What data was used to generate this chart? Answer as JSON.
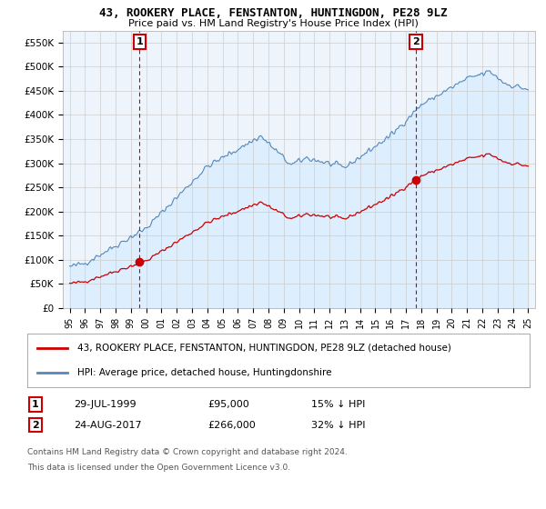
{
  "title": "43, ROOKERY PLACE, FENSTANTON, HUNTINGDON, PE28 9LZ",
  "subtitle": "Price paid vs. HM Land Registry's House Price Index (HPI)",
  "legend_line1": "43, ROOKERY PLACE, FENSTANTON, HUNTINGDON, PE28 9LZ (detached house)",
  "legend_line2": "HPI: Average price, detached house, Huntingdonshire",
  "footnote1": "Contains HM Land Registry data © Crown copyright and database right 2024.",
  "footnote2": "This data is licensed under the Open Government Licence v3.0.",
  "marker1_date": "29-JUL-1999",
  "marker1_price": "£95,000",
  "marker1_hpi": "15% ↓ HPI",
  "marker2_date": "24-AUG-2017",
  "marker2_price": "£266,000",
  "marker2_hpi": "32% ↓ HPI",
  "hpi_color": "#5588bb",
  "hpi_fill_color": "#ddeeff",
  "price_color": "#cc0000",
  "marker_color": "#cc0000",
  "grid_color": "#cccccc",
  "bg_color": "#ffffff",
  "plot_bg_color": "#eef4fb",
  "ylim": [
    0,
    575000
  ],
  "yticks": [
    0,
    50000,
    100000,
    150000,
    200000,
    250000,
    300000,
    350000,
    400000,
    450000,
    500000,
    550000
  ],
  "ytick_labels": [
    "£0",
    "£50K",
    "£100K",
    "£150K",
    "£200K",
    "£250K",
    "£300K",
    "£350K",
    "£400K",
    "£450K",
    "£500K",
    "£550K"
  ],
  "t1": 1999.575,
  "t2": 2017.648,
  "p1": 95000,
  "p2": 266000
}
